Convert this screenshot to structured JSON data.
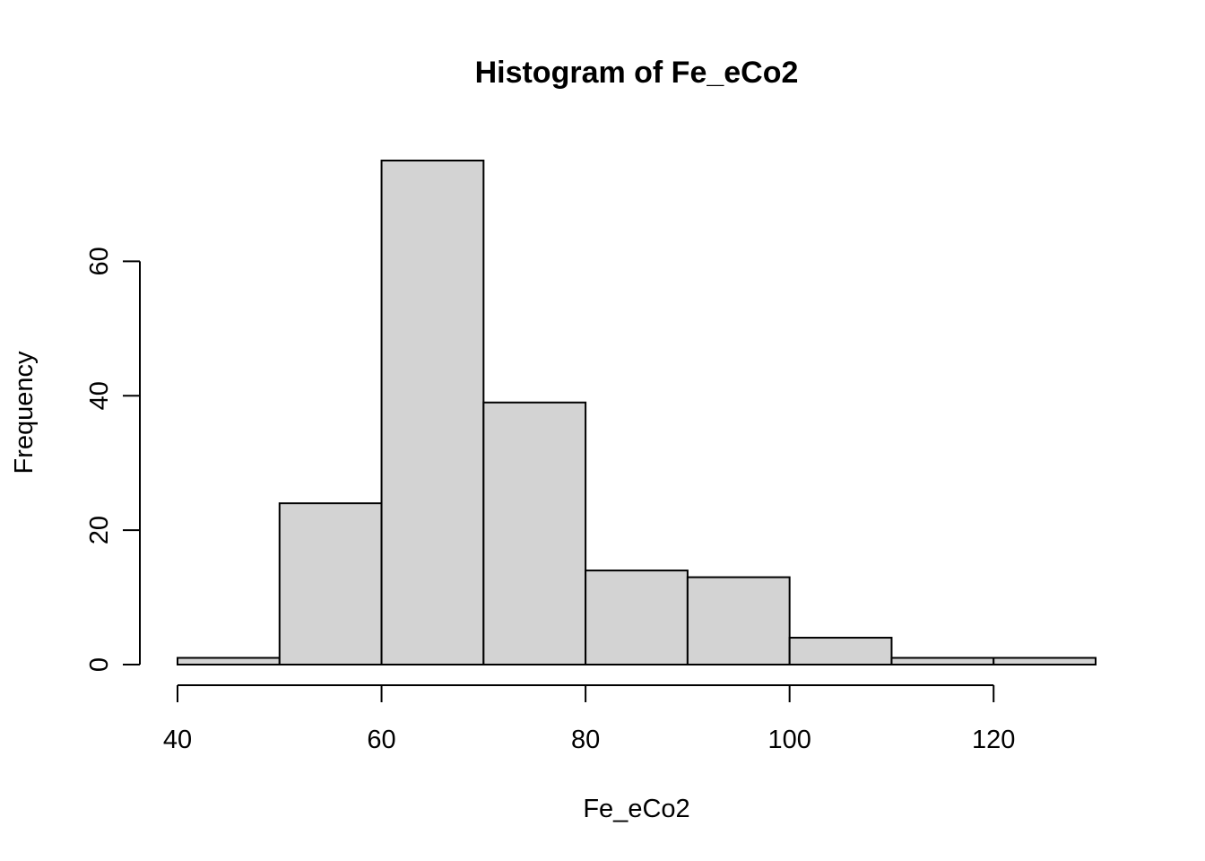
{
  "chart_data": {
    "type": "bar",
    "title": "Histogram of Fe_eCo2",
    "xlabel": "Fe_eCo2",
    "ylabel": "Frequency",
    "bins": [
      {
        "start": 40,
        "end": 50,
        "count": 1
      },
      {
        "start": 50,
        "end": 60,
        "count": 24
      },
      {
        "start": 60,
        "end": 70,
        "count": 75
      },
      {
        "start": 70,
        "end": 80,
        "count": 39
      },
      {
        "start": 80,
        "end": 90,
        "count": 14
      },
      {
        "start": 90,
        "end": 100,
        "count": 13
      },
      {
        "start": 100,
        "end": 110,
        "count": 4
      },
      {
        "start": 110,
        "end": 120,
        "count": 1
      },
      {
        "start": 120,
        "end": 130,
        "count": 1
      }
    ],
    "x_ticks": [
      40,
      60,
      80,
      100,
      120
    ],
    "y_ticks": [
      0,
      20,
      40,
      60
    ],
    "xlim": [
      40,
      130
    ],
    "ylim": [
      0,
      75
    ],
    "grid": false,
    "bar_color": "#d3d3d3",
    "border_color": "#000000"
  }
}
